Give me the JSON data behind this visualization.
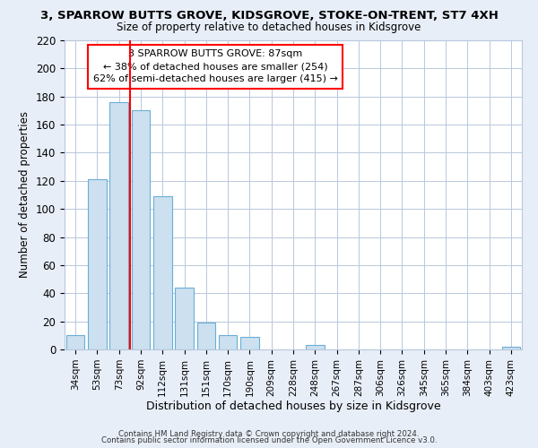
{
  "title": "3, SPARROW BUTTS GROVE, KIDSGROVE, STOKE-ON-TRENT, ST7 4XH",
  "subtitle": "Size of property relative to detached houses in Kidsgrove",
  "xlabel": "Distribution of detached houses by size in Kidsgrove",
  "ylabel": "Number of detached properties",
  "bar_labels": [
    "34sqm",
    "53sqm",
    "73sqm",
    "92sqm",
    "112sqm",
    "131sqm",
    "151sqm",
    "170sqm",
    "190sqm",
    "209sqm",
    "228sqm",
    "248sqm",
    "267sqm",
    "287sqm",
    "306sqm",
    "326sqm",
    "345sqm",
    "365sqm",
    "384sqm",
    "403sqm",
    "423sqm"
  ],
  "bar_values": [
    10,
    121,
    176,
    170,
    109,
    44,
    19,
    10,
    9,
    0,
    0,
    3,
    0,
    0,
    0,
    0,
    0,
    0,
    0,
    0,
    2
  ],
  "bar_color": "#cce0f0",
  "bar_edge_color": "#6aaed6",
  "reference_line_label": "3 SPARROW BUTTS GROVE: 87sqm",
  "annotation_smaller": "← 38% of detached houses are smaller (254)",
  "annotation_larger": "62% of semi-detached houses are larger (415) →",
  "vline_color": "red",
  "ymax": 220,
  "yticks": [
    0,
    20,
    40,
    60,
    80,
    100,
    120,
    140,
    160,
    180,
    200,
    220
  ],
  "footer1": "Contains HM Land Registry data © Crown copyright and database right 2024.",
  "footer2": "Contains public sector information licensed under the Open Government Licence v3.0.",
  "bg_color": "#e8eef8",
  "plot_bg_color": "#ffffff",
  "grid_color": "#b8c8dc"
}
